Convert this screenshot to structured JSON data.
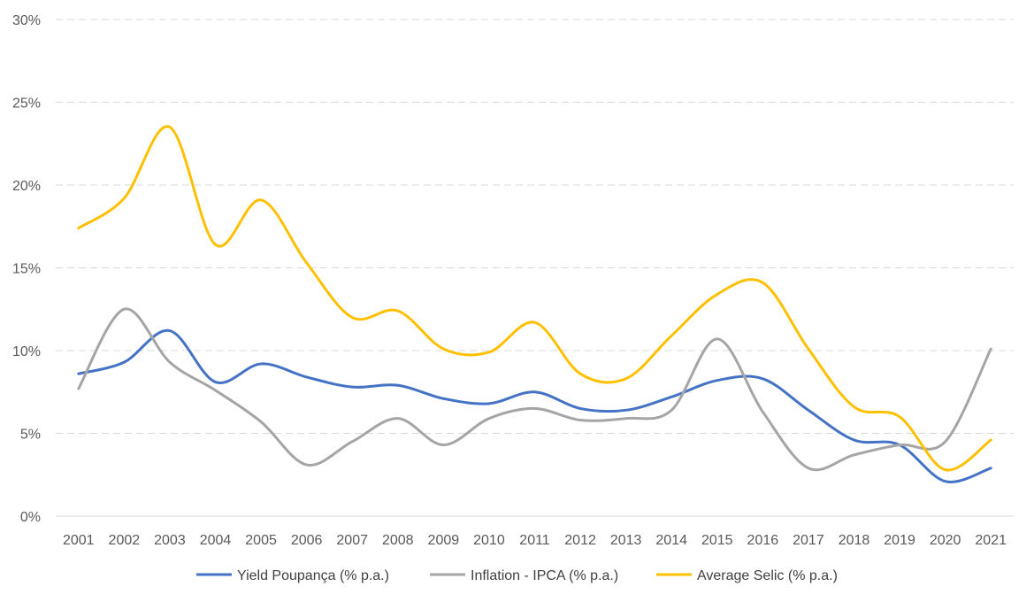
{
  "chart_data": {
    "type": "line",
    "title": "",
    "xlabel": "",
    "ylabel": "",
    "x": [
      "2001",
      "2002",
      "2003",
      "2004",
      "2005",
      "2006",
      "2007",
      "2008",
      "2009",
      "2010",
      "2011",
      "2012",
      "2013",
      "2014",
      "2015",
      "2016",
      "2017",
      "2018",
      "2019",
      "2020",
      "2021"
    ],
    "ylim": [
      0,
      30
    ],
    "yticks": [
      0,
      5,
      10,
      15,
      20,
      25,
      30
    ],
    "ytick_labels": [
      "0%",
      "5%",
      "10%",
      "15%",
      "20%",
      "25%",
      "30%"
    ],
    "grid": "horizontal dashed",
    "legend_position": "bottom",
    "series": [
      {
        "name": "Yield Poupança (% p.a.)",
        "color": "#4472C4",
        "values": [
          8.6,
          9.3,
          11.2,
          8.1,
          9.2,
          8.4,
          7.8,
          7.9,
          7.1,
          6.8,
          7.5,
          6.5,
          6.4,
          7.2,
          8.2,
          8.3,
          6.4,
          4.6,
          4.3,
          2.1,
          2.9
        ]
      },
      {
        "name": "Inflation - IPCA (% p.a.)",
        "color": "#A5A5A5",
        "values": [
          7.7,
          12.5,
          9.3,
          7.6,
          5.7,
          3.1,
          4.5,
          5.9,
          4.3,
          5.9,
          6.5,
          5.8,
          5.9,
          6.4,
          10.7,
          6.3,
          2.9,
          3.7,
          4.3,
          4.5,
          10.1
        ]
      },
      {
        "name": "Average Selic (% p.a.)",
        "color": "#FFC000",
        "values": [
          17.4,
          19.2,
          23.5,
          16.4,
          19.1,
          15.3,
          12.0,
          12.4,
          10.1,
          9.9,
          11.7,
          8.6,
          8.3,
          10.9,
          13.4,
          14.1,
          10.1,
          6.6,
          6.0,
          2.8,
          4.6
        ]
      }
    ]
  }
}
